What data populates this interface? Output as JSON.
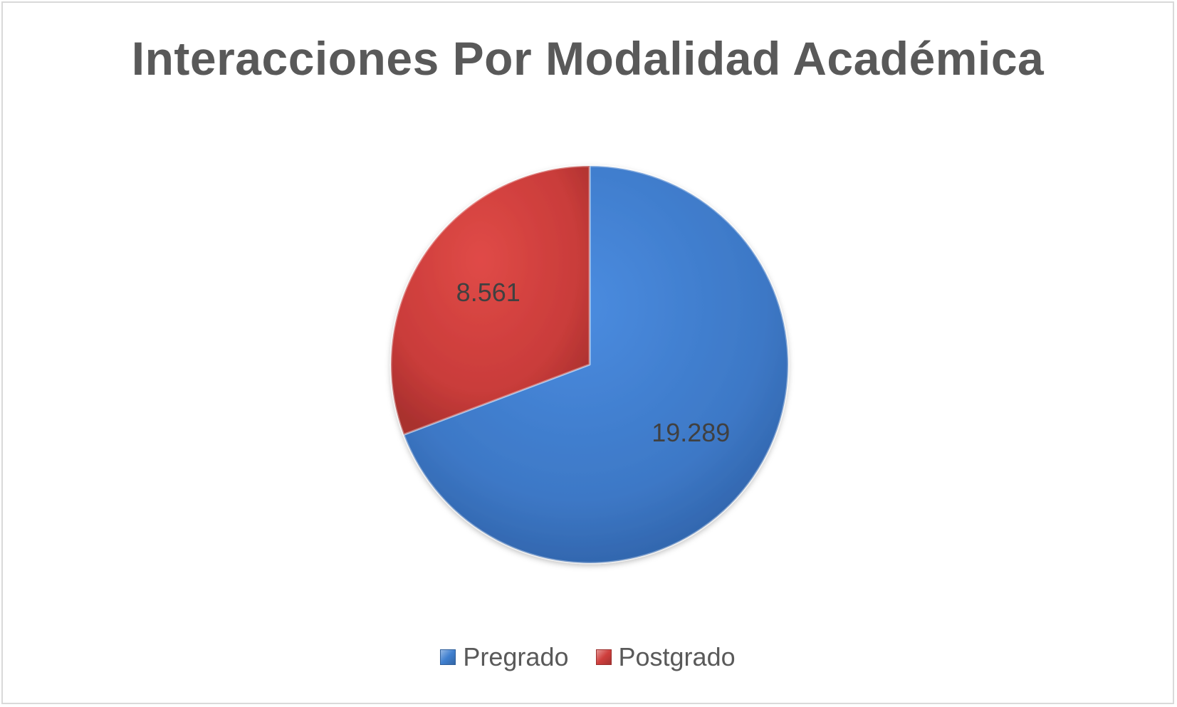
{
  "chart_data": {
    "type": "pie",
    "title": "Interacciones Por Modalidad Académica",
    "categories": [
      "Pregrado",
      "Postgrado"
    ],
    "values": [
      19289,
      8561
    ],
    "data_labels": [
      "19.289",
      "8.561"
    ],
    "colors": [
      "#3f7fcf",
      "#cf3f3d"
    ],
    "start_angle_deg": 0,
    "direction": "clockwise",
    "legend": "bottom"
  }
}
